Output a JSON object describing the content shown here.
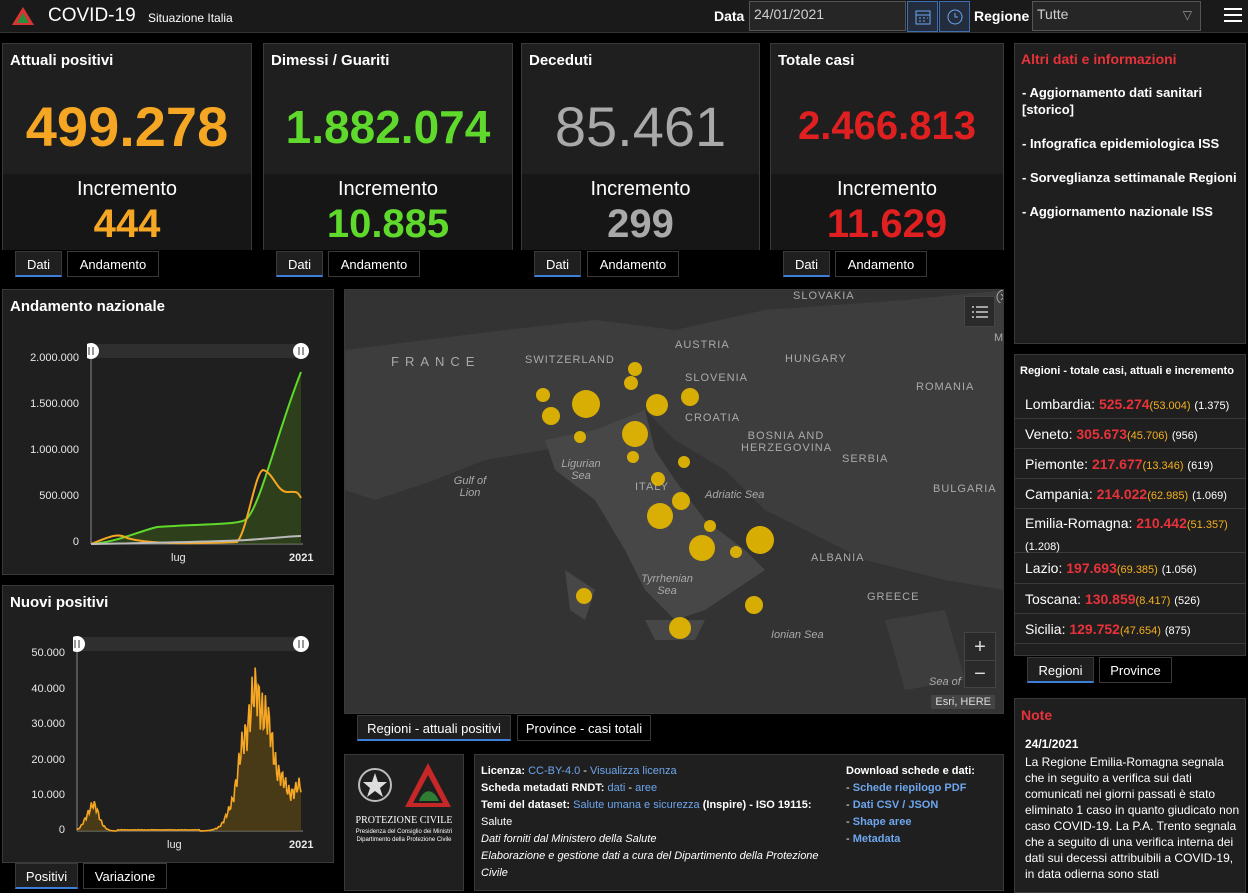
{
  "header": {
    "title": "COVID-19",
    "subtitle": "Situazione Italia",
    "date_label": "Data",
    "date_value": "24/01/2021",
    "region_label": "Regione",
    "region_value": "Tutte"
  },
  "kpis": [
    {
      "title": "Attuali positivi",
      "value": "499.278",
      "inc_label": "Incremento",
      "inc_value": "444",
      "color": "#f5a623"
    },
    {
      "title": "Dimessi / Guariti",
      "value": "1.882.074",
      "inc_label": "Incremento",
      "inc_value": "10.885",
      "color": "#5fd92b"
    },
    {
      "title": "Deceduti",
      "value": "85.461",
      "inc_label": "Incremento",
      "inc_value": "299",
      "color": "#a9a9a9"
    },
    {
      "title": "Totale casi",
      "value": "2.466.813",
      "inc_label": "Incremento",
      "inc_value": "11.629",
      "color": "#e02020"
    }
  ],
  "kpi_tabs": {
    "dati": "Dati",
    "andamento": "Andamento"
  },
  "info": {
    "title": "Altri dati e informazioni",
    "items": [
      "- Aggiornamento dati sanitari [storico]",
      "- Infografica epidemiologica ISS",
      "- Sorveglianza settimanale Regioni",
      "- Aggiornamento nazionale ISS"
    ]
  },
  "andamento": {
    "title": "Andamento nazionale",
    "yticks": [
      "2.000.000",
      "1.500.000",
      "1.000.000",
      "500.000",
      "0"
    ],
    "xticks": [
      "lug",
      "2021"
    ]
  },
  "nuovi": {
    "title": "Nuovi positivi",
    "yticks": [
      "50.000",
      "40.000",
      "30.000",
      "20.000",
      "10.000",
      "0"
    ],
    "xticks": [
      "lug",
      "2021"
    ],
    "tab_a": "Positivi",
    "tab_b": "Variazione"
  },
  "map": {
    "labels": [
      "SLOVAKIA",
      "FRANCE",
      "SWITZERLAND",
      "AUSTRIA",
      "HUNGARY",
      "SLOVENIA",
      "ROMANIA",
      "CROATIA",
      "BOSNIA AND HERZEGOVINA",
      "SERBIA",
      "Ligurian Sea",
      "Gulf of Lion",
      "ITALY",
      "Adriatic Sea",
      "BULGARIA",
      "ALBANIA",
      "Tyrrhenian Sea",
      "GREECE",
      "Ionian Sea",
      "Sea of",
      "M"
    ],
    "attribution": "Esri, HERE",
    "tab_a": "Regioni - attuali positivi",
    "tab_b": "Province - casi totali",
    "zoom_in": "+",
    "zoom_out": "−"
  },
  "regions": {
    "title": "Regioni - totale casi, attuali e incremento",
    "rows": [
      {
        "name": "Lombardia:",
        "total": "525.274",
        "att": "(53.004)",
        "inc": "(1.375)"
      },
      {
        "name": "Veneto:",
        "total": "305.673",
        "att": "(45.706)",
        "inc": "(956)"
      },
      {
        "name": "Piemonte:",
        "total": "217.677",
        "att": "(13.346)",
        "inc": "(619)"
      },
      {
        "name": "Campania:",
        "total": "214.022",
        "att": "(62.985)",
        "inc": "(1.069)"
      },
      {
        "name": "Emilia-Romagna:",
        "total": "210.442",
        "att": "(51.357)",
        "inc": "(1.208)"
      },
      {
        "name": "Lazio:",
        "total": "197.693",
        "att": "(69.385)",
        "inc": "(1.056)"
      },
      {
        "name": "Toscana:",
        "total": "130.859",
        "att": "(8.417)",
        "inc": "(526)"
      },
      {
        "name": "Sicilia:",
        "total": "129.752",
        "att": "(47.654)",
        "inc": "(875)"
      }
    ],
    "tab_a": "Regioni",
    "tab_b": "Province"
  },
  "nota": {
    "title": "Note",
    "date": "24/1/2021",
    "text": "La Regione Emilia-Romagna segnala che in seguito a verifica sui dati comunicati nei giorni passati è stato eliminato 1 caso in quanto giudicato non caso COVID-19. La P.A. Trento segnala che a seguito di una verifica interna dei dati sui decessi attribuibili a COVID-19, in data odierna sono stati"
  },
  "logos": {
    "pc_title": "PROTEZIONE CIVILE",
    "pc_sub1": "Presidenza del Consiglio dei Ministri",
    "pc_sub2": "Dipartimento della Protezione Civile"
  },
  "meta": {
    "licenza_label": "Licenza:",
    "licenza": "CC-BY-4.0",
    "licenza_sep": " - ",
    "licenza_link": "Visualizza licenza",
    "scheda_label": "Scheda metadati RNDT:",
    "scheda_a": "dati",
    "scheda_sep": " - ",
    "scheda_b": "aree",
    "temi_label": "Temi del dataset:",
    "temi_link": "Salute umana e sicurezza",
    "temi_rest": " (Inspire) - ISO 19115:",
    "salute": "Salute",
    "fonte": "Dati forniti dal Ministero della Salute",
    "elab": "Elaborazione e gestione dati a cura del Dipartimento della Protezione Civile",
    "dl_title": "Download schede e dati:",
    "dl": [
      "Schede riepilogo PDF",
      "Dati CSV / JSON",
      "Shape aree",
      "Metadata"
    ]
  },
  "colors": {
    "attuali": "#f5a623",
    "guariti": "#5fd92b",
    "deceduti": "#a9a9a9",
    "totale": "#e02020",
    "accent": "#3d7fd8"
  }
}
